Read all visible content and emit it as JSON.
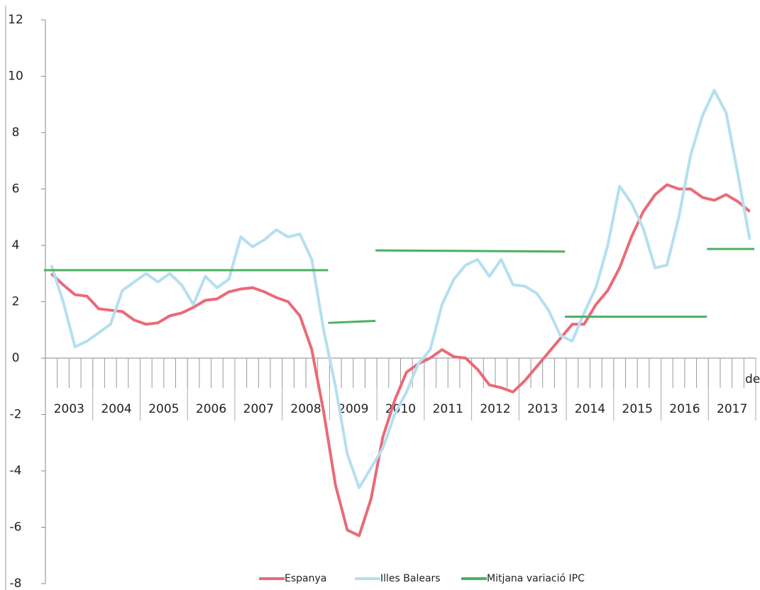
{
  "chart_data": {
    "type": "line",
    "year_labels": [
      "2003",
      "2004",
      "2005",
      "2006",
      "2007",
      "2008",
      "2009",
      "2010",
      "2011",
      "2012",
      "2013",
      "2014",
      "2015",
      "2016",
      "2017"
    ],
    "categories": [
      null,
      null,
      null,
      null,
      null,
      null,
      null,
      null,
      null,
      null,
      null,
      null,
      null,
      null,
      null,
      null,
      null,
      null,
      null,
      null,
      null,
      null,
      null,
      null,
      null,
      null,
      null,
      null,
      null,
      null,
      null,
      null,
      null,
      null,
      null,
      null,
      null,
      null,
      null,
      null,
      null,
      null,
      null,
      null,
      null,
      null,
      null,
      null,
      null,
      null,
      null,
      null,
      null,
      null,
      null,
      null,
      null,
      null,
      null,
      null
    ],
    "annotation": "de",
    "ylim": [
      -8,
      12
    ],
    "yticks": [
      -8,
      -6,
      -4,
      -2,
      0,
      2,
      4,
      6,
      8,
      10,
      12
    ],
    "series": [
      {
        "name": "Espanya",
        "color": "#ea6a78",
        "values": [
          3.0,
          2.6,
          2.25,
          2.2,
          1.75,
          1.7,
          1.65,
          1.35,
          1.2,
          1.25,
          1.5,
          1.6,
          1.8,
          2.05,
          2.1,
          2.35,
          2.45,
          2.5,
          2.35,
          2.15,
          2.0,
          1.5,
          0.3,
          -1.9,
          -4.5,
          -6.1,
          -6.3,
          -5.0,
          -2.8,
          -1.5,
          -0.5,
          -0.2,
          0.0,
          0.3,
          0.05,
          0.0,
          -0.4,
          -0.95,
          -1.05,
          -1.2,
          -0.8,
          -0.3,
          0.2,
          0.7,
          1.2,
          1.2,
          1.9,
          2.4,
          3.2,
          4.3,
          5.2,
          5.8,
          6.15,
          6.0,
          6.0,
          5.7,
          5.6,
          5.8,
          5.55,
          5.2
        ]
      },
      {
        "name": "Illes Balears",
        "color": "#b5dff0",
        "values": [
          3.3,
          2.0,
          0.4,
          0.6,
          0.9,
          1.2,
          2.4,
          2.7,
          3.0,
          2.7,
          3.0,
          2.6,
          1.9,
          2.9,
          2.5,
          2.8,
          4.3,
          3.95,
          4.2,
          4.55,
          4.3,
          4.4,
          3.5,
          1.0,
          -1.0,
          -3.4,
          -4.6,
          -3.9,
          -3.2,
          -2.0,
          -1.2,
          -0.2,
          0.3,
          1.9,
          2.8,
          3.3,
          3.5,
          2.9,
          3.5,
          2.6,
          2.55,
          2.3,
          1.7,
          0.8,
          0.6,
          1.6,
          2.5,
          4.0,
          6.1,
          5.5,
          4.6,
          3.2,
          3.3,
          5.0,
          7.2,
          8.6,
          9.5,
          8.7,
          6.5,
          4.2
        ]
      },
      {
        "name": "Mitjana variació IPC",
        "color": "#4caf64",
        "segments": [
          {
            "from": "2003",
            "to": "2008",
            "values": [
              3.12,
              3.12
            ]
          },
          {
            "from": "2009",
            "to": "2009",
            "values": [
              1.25,
              1.32
            ]
          },
          {
            "from": "2010",
            "to": "2013",
            "values": [
              3.82,
              3.78
            ]
          },
          {
            "from": "2014",
            "to": "2016",
            "values": [
              1.47,
              1.47
            ]
          },
          {
            "from": "2017",
            "to": "2017",
            "values": [
              3.87,
              3.87
            ]
          }
        ]
      }
    ]
  }
}
